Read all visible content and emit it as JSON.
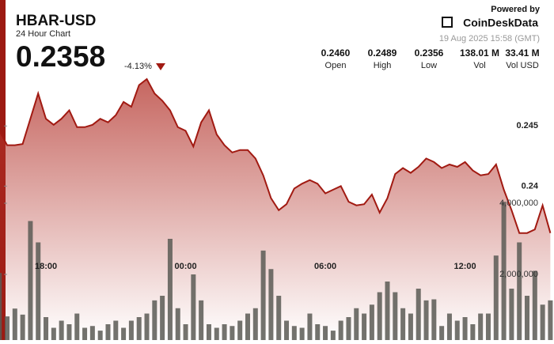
{
  "chart_data": {
    "type": "line",
    "title": "HBAR-USD",
    "subtitle": "24 Hour Chart",
    "price": "0.2358",
    "change": "-4.13%",
    "stats": [
      {
        "value": "0.2460",
        "label": "Open"
      },
      {
        "value": "0.2489",
        "label": "High"
      },
      {
        "value": "0.2356",
        "label": "Low"
      },
      {
        "value": "138.01 M",
        "label": "Vol"
      },
      {
        "value": "33.41 M",
        "label": "Vol USD"
      }
    ],
    "powered_by": "Powered by",
    "brand": "CoinDeskData",
    "timestamp": "19 Aug 2025 15:58 (GMT)",
    "categories": [
      null,
      null,
      null,
      null,
      null,
      null,
      "18:00",
      null,
      null,
      null,
      null,
      null,
      null,
      null,
      null,
      null,
      null,
      null,
      null,
      null,
      null,
      null,
      null,
      null,
      "00:00",
      null,
      null,
      null,
      null,
      null,
      null,
      null,
      null,
      null,
      null,
      null,
      null,
      null,
      null,
      null,
      null,
      null,
      "06:00",
      null,
      null,
      null,
      null,
      null,
      null,
      null,
      null,
      null,
      null,
      null,
      null,
      null,
      null,
      null,
      null,
      null,
      "12:00",
      null,
      null,
      null,
      null,
      null,
      null,
      null,
      null,
      null,
      null,
      null
    ],
    "series": [
      {
        "name": "Price",
        "color": "#a11a12",
        "values": [
          0.2446,
          0.2434,
          0.2434,
          0.2435,
          0.2456,
          0.2477,
          0.2456,
          0.2451,
          0.2456,
          0.2463,
          0.2449,
          0.2449,
          0.2451,
          0.2456,
          0.2453,
          0.2459,
          0.247,
          0.2466,
          0.2484,
          0.2489,
          0.2477,
          0.2471,
          0.2463,
          0.2449,
          0.2446,
          0.2433,
          0.2453,
          0.2463,
          0.2443,
          0.2434,
          0.2428,
          0.243,
          0.243,
          0.2423,
          0.2409,
          0.239,
          0.238,
          0.2385,
          0.2398,
          0.2402,
          0.2405,
          0.2402,
          0.2394,
          0.2397,
          0.24,
          0.2387,
          0.2384,
          0.2385,
          0.2393,
          0.2378,
          0.239,
          0.241,
          0.2415,
          0.2411,
          0.2416,
          0.2423,
          0.242,
          0.2415,
          0.2418,
          0.2416,
          0.242,
          0.2413,
          0.2409,
          0.241,
          0.2418,
          0.2397,
          0.238,
          0.2361,
          0.2361,
          0.2364,
          0.2384,
          0.2361
        ]
      },
      {
        "name": "Volume",
        "color": "#5a5a55",
        "axis": "y2",
        "values": [
          2040000,
          820000,
          1040000,
          870000,
          3500000,
          2900000,
          800000,
          500000,
          700000,
          600000,
          900000,
          500000,
          550000,
          420000,
          600000,
          700000,
          500000,
          700000,
          800000,
          900000,
          1270000,
          1400000,
          3000000,
          1050000,
          600000,
          2000000,
          1270000,
          600000,
          500000,
          600000,
          550000,
          700000,
          900000,
          1050000,
          2670000,
          2150000,
          1400000,
          700000,
          550000,
          500000,
          900000,
          600000,
          550000,
          420000,
          700000,
          800000,
          1050000,
          900000,
          1150000,
          1500000,
          1800000,
          1500000,
          1050000,
          900000,
          1600000,
          1270000,
          1300000,
          550000,
          900000,
          700000,
          800000,
          600000,
          900000,
          900000,
          2530000,
          4040000,
          1600000,
          2900000,
          1400000,
          2100000,
          1150000,
          1270000
        ]
      }
    ],
    "ylim": [
      0.2272,
      0.2489
    ],
    "yticks": [
      0.245,
      0.24
    ],
    "y2lim": [
      155556,
      7488889
    ],
    "y2ticks": [
      {
        "value": 4000000,
        "label": "4,000,000"
      },
      {
        "value": 2000000,
        "label": "2,000,000"
      }
    ]
  }
}
